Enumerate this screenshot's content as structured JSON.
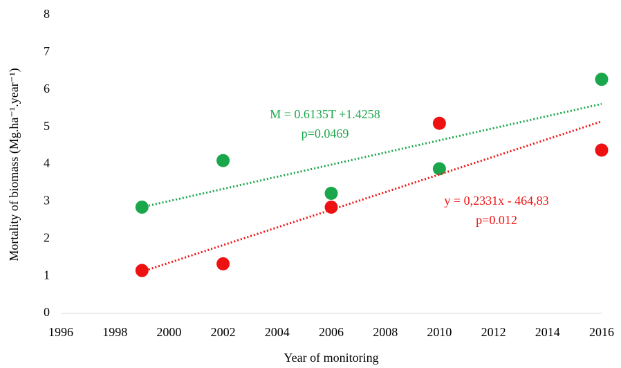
{
  "chart_data": {
    "type": "scatter",
    "x_label": "Year of monitoring",
    "y_label": "Mortality of biomass (Mg.ha⁻¹.year⁻¹)",
    "xlim": [
      1996,
      2016
    ],
    "xticks": [
      1996,
      1998,
      2000,
      2002,
      2004,
      2006,
      2008,
      2010,
      2012,
      2014,
      2016
    ],
    "ylim": [
      0,
      8
    ],
    "yticks": [
      0,
      1,
      2,
      3,
      4,
      5,
      6,
      7,
      8
    ],
    "grid": false,
    "series": [
      {
        "color": "#1aa64a",
        "x": [
          1999,
          2002,
          2006,
          2010,
          2016
        ],
        "values": [
          2.85,
          4.1,
          3.22,
          3.88,
          6.28
        ],
        "trend": {
          "x": [
            1999,
            2016
          ],
          "values": [
            2.85,
            5.62
          ]
        }
      },
      {
        "color": "#ee1111",
        "x": [
          1999,
          2002,
          2006,
          2010,
          2016
        ],
        "values": [
          1.15,
          1.33,
          2.85,
          5.1,
          4.38
        ],
        "trend": {
          "x": [
            1999,
            2016
          ],
          "values": [
            1.12,
            5.15
          ]
        }
      }
    ],
    "annotations": [
      {
        "color": "#1aa64a",
        "lines": [
          "M = 0.6135T +1.4258",
          "p=0.0469"
        ]
      },
      {
        "color": "#ee1111",
        "lines": [
          "y = 0,2331x - 464,83",
          "p=0.012"
        ]
      }
    ]
  }
}
